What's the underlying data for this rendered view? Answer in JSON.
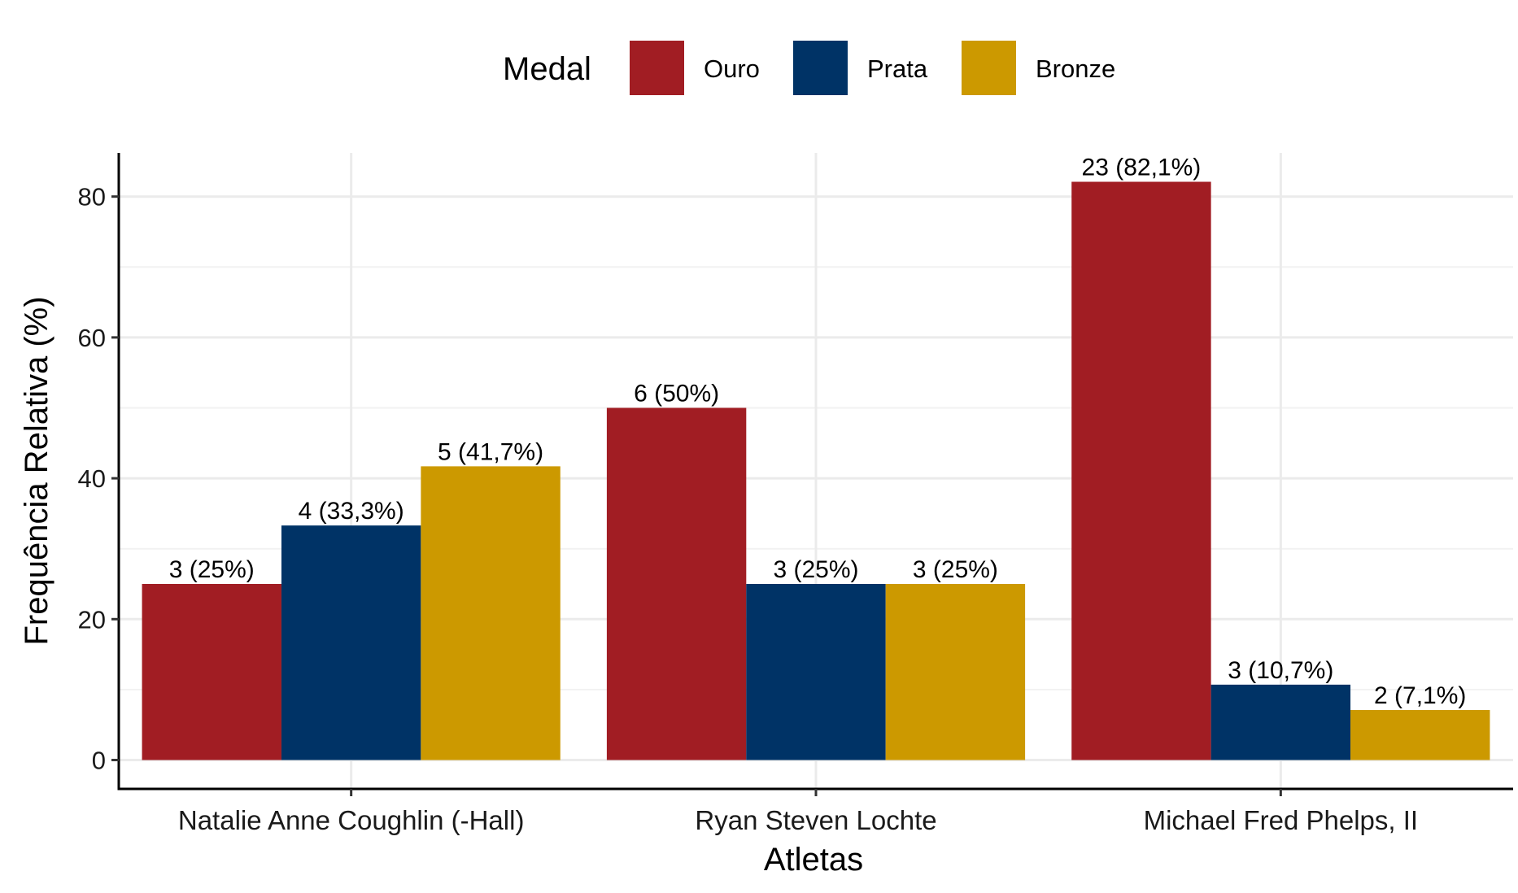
{
  "chart_data": {
    "type": "bar",
    "xlabel": "Atletas",
    "ylabel": "Frequência Relativa (%)",
    "legend": {
      "title": "Medal",
      "position": "top"
    },
    "categories": [
      "Natalie Anne Coughlin (-Hall)",
      "Ryan Steven Lochte",
      "Michael Fred Phelps, II"
    ],
    "series": [
      {
        "name": "Ouro",
        "color": "#A11D23",
        "values": [
          25,
          50,
          82.1
        ],
        "labels": [
          "3 (25%)",
          "6 (50%)",
          "23 (82,1%)"
        ]
      },
      {
        "name": "Prata",
        "color": "#003366",
        "values": [
          33.3,
          25,
          10.7
        ],
        "labels": [
          "4 (33,3%)",
          "3 (25%)",
          "3 (10,7%)"
        ]
      },
      {
        "name": "Bronze",
        "color": "#CC9900",
        "values": [
          41.7,
          25,
          7.1
        ],
        "labels": [
          "5 (41,7%)",
          "3 (25%)",
          "2 (7,1%)"
        ]
      }
    ],
    "yticks": [
      0,
      20,
      40,
      60,
      80
    ],
    "ylim": [
      -4.1,
      86.2
    ],
    "grid": true
  }
}
